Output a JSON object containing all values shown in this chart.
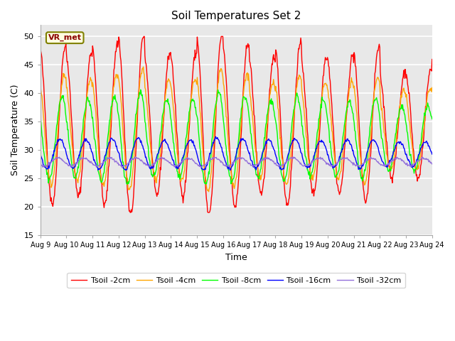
{
  "title": "Soil Temperatures Set 2",
  "xlabel": "Time",
  "ylabel": "Soil Temperature (C)",
  "ylim": [
    15,
    52
  ],
  "annotation": "VR_met",
  "bg_color": "#e8e8e8",
  "grid_color": "white",
  "legend_labels": [
    "Tsoil -2cm",
    "Tsoil -4cm",
    "Tsoil -8cm",
    "Tsoil -16cm",
    "Tsoil -32cm"
  ],
  "line_colors": [
    "red",
    "orange",
    "lime",
    "blue",
    "mediumpurple"
  ],
  "xtick_labels": [
    "Aug 9",
    "Aug 10",
    "Aug 11",
    "Aug 12",
    "Aug 13",
    "Aug 14",
    "Aug 15",
    "Aug 16",
    "Aug 17",
    "Aug 18",
    "Aug 19",
    "Aug 20",
    "Aug 21",
    "Aug 22",
    "Aug 23",
    "Aug 24"
  ],
  "ytick_vals": [
    15,
    20,
    25,
    30,
    35,
    40,
    45,
    50
  ],
  "n_days": 15,
  "n_points_per_day": 48,
  "figsize": [
    6.4,
    4.8
  ],
  "dpi": 100
}
